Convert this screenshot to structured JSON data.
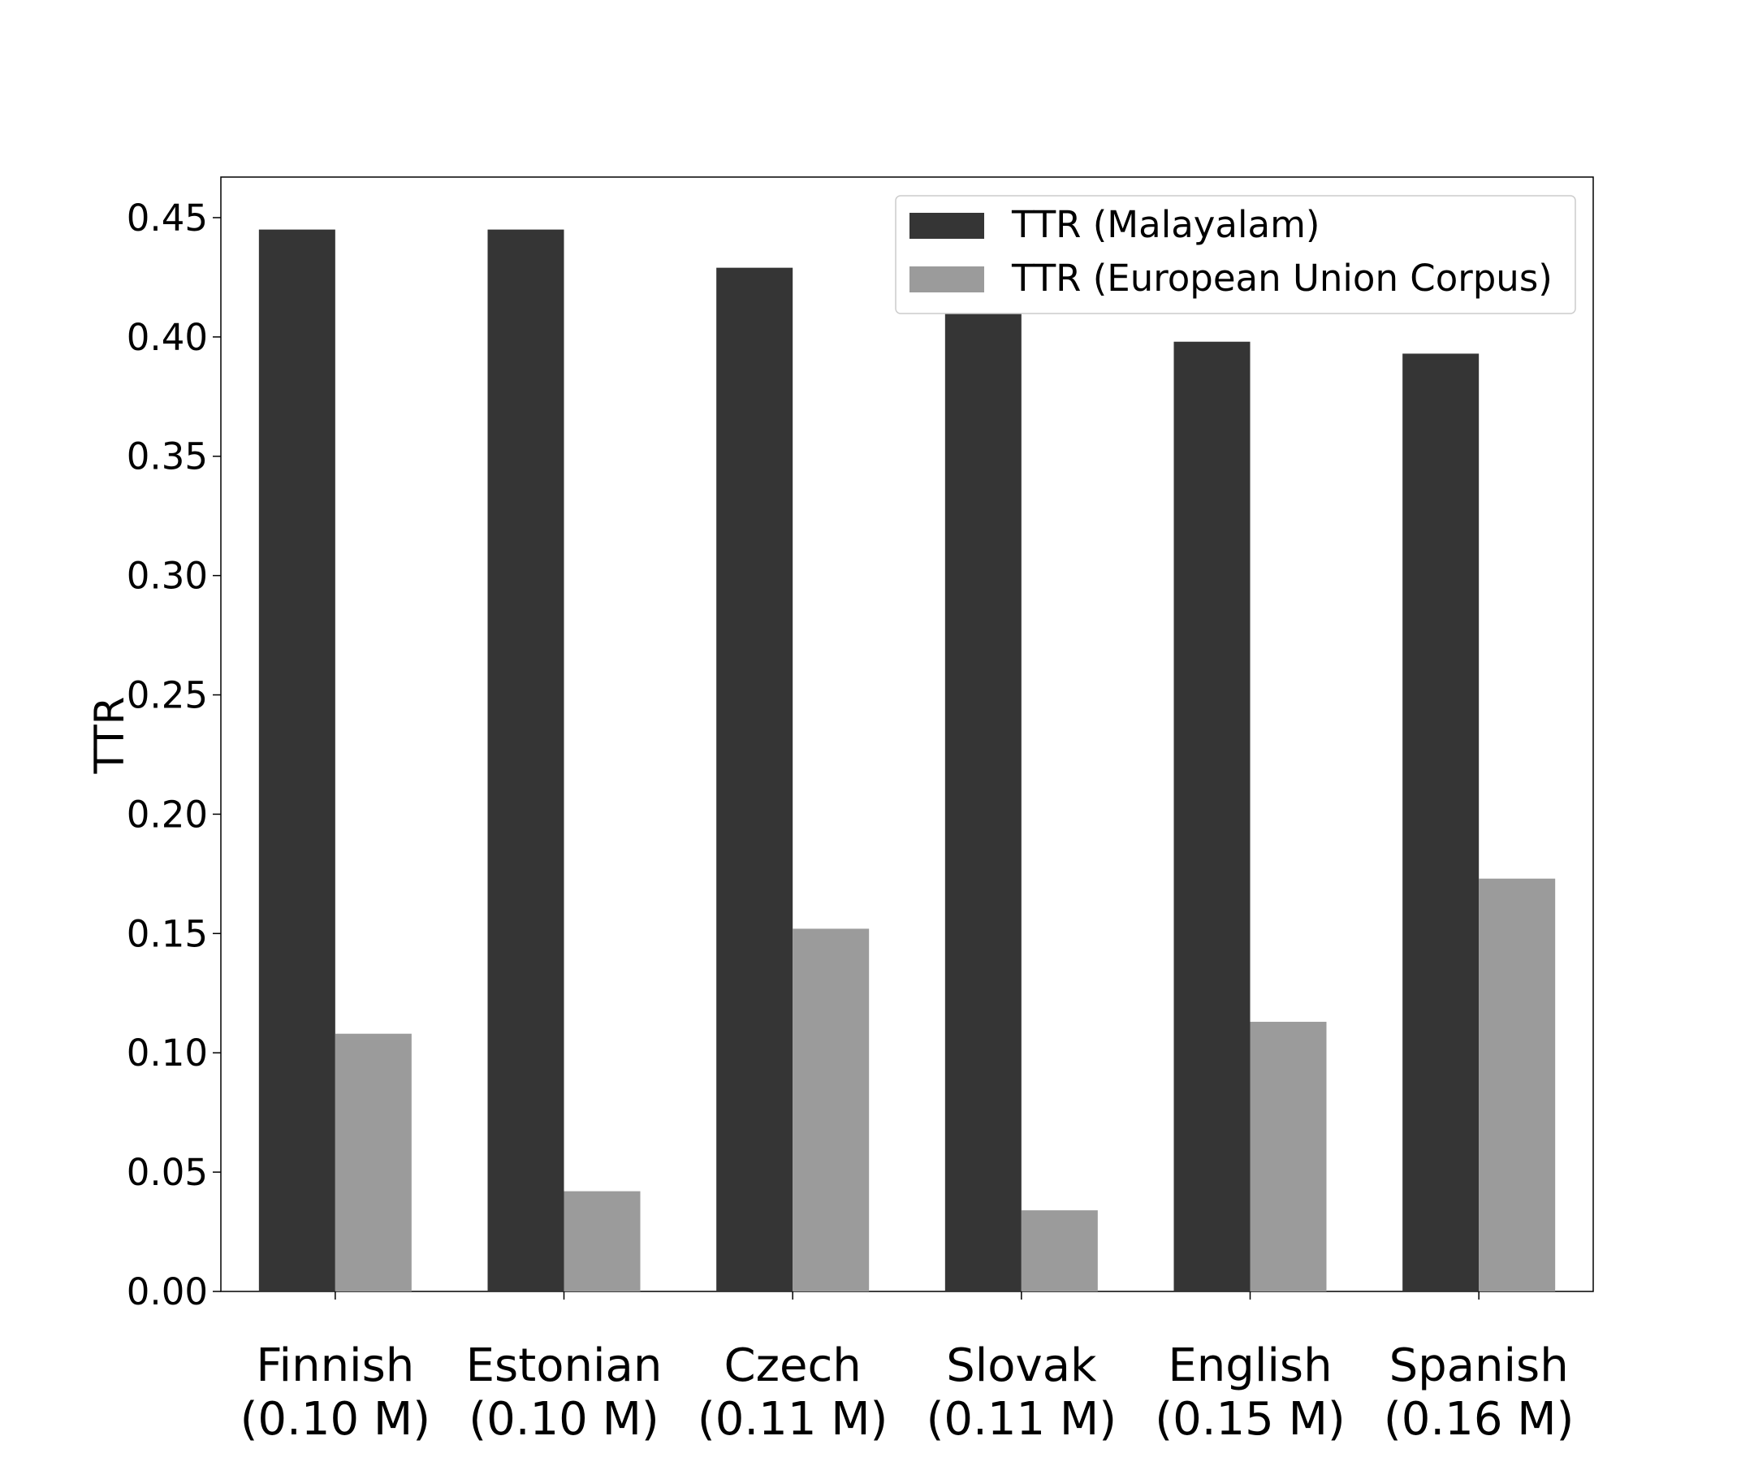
{
  "chart_data": {
    "type": "bar",
    "ylabel": "TTR",
    "xlabel": "",
    "ylim": [
      0,
      0.467
    ],
    "yticks": [
      "0.00",
      "0.05",
      "0.10",
      "0.15",
      "0.20",
      "0.25",
      "0.30",
      "0.35",
      "0.40",
      "0.45"
    ],
    "categories": [
      [
        "Finnish",
        "(0.10 M)"
      ],
      [
        "Estonian",
        "(0.10 M)"
      ],
      [
        "Czech",
        "(0.11 M)"
      ],
      [
        "Slovak",
        "(0.11 M)"
      ],
      [
        "English",
        "(0.15 M)"
      ],
      [
        "Spanish",
        "(0.16 M)"
      ]
    ],
    "series": [
      {
        "name": "TTR (Malayalam)",
        "color": "#353535",
        "values": [
          0.445,
          0.445,
          0.429,
          0.411,
          0.398,
          0.393
        ]
      },
      {
        "name": "TTR (European Union Corpus)",
        "color": "#9b9b9b",
        "values": [
          0.108,
          0.042,
          0.152,
          0.034,
          0.113,
          0.173
        ]
      }
    ],
    "legend": {
      "position": "top-right"
    },
    "grid": false
  }
}
